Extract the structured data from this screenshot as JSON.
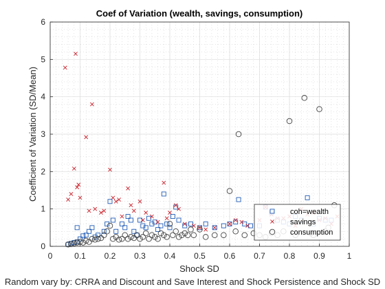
{
  "chart_data": {
    "type": "scatter",
    "title": "Coef of Variation (wealth, savings, consumption)",
    "xlabel": "Shock SD",
    "ylabel": "Coefficient of Variation (SD/Mean)",
    "footer": "Random vary by: CRRA and Discount and Save Interest and Shock Persistence and Shock SD",
    "xlim": [
      0,
      1
    ],
    "ylim": [
      0,
      6
    ],
    "xticks": [
      "0",
      "0.1",
      "0.2",
      "0.3",
      "0.4",
      "0.5",
      "0.6",
      "0.7",
      "0.8",
      "0.9",
      "1"
    ],
    "yticks": [
      "0",
      "1",
      "2",
      "3",
      "4",
      "5",
      "6"
    ],
    "grid": true,
    "minor_grid": true,
    "legend_position": "bottom-right",
    "series": [
      {
        "name": "coh=wealth",
        "marker": "square",
        "color": "#1f5bb5",
        "points": [
          [
            0.06,
            0.05
          ],
          [
            0.07,
            0.08
          ],
          [
            0.08,
            0.1
          ],
          [
            0.09,
            0.12
          ],
          [
            0.1,
            0.2
          ],
          [
            0.11,
            0.28
          ],
          [
            0.12,
            0.3
          ],
          [
            0.13,
            0.4
          ],
          [
            0.14,
            0.5
          ],
          [
            0.16,
            0.3
          ],
          [
            0.18,
            0.4
          ],
          [
            0.19,
            0.6
          ],
          [
            0.2,
            1.2
          ],
          [
            0.21,
            0.7
          ],
          [
            0.22,
            0.4
          ],
          [
            0.24,
            0.6
          ],
          [
            0.25,
            0.5
          ],
          [
            0.26,
            0.8
          ],
          [
            0.27,
            0.7
          ],
          [
            0.28,
            0.4
          ],
          [
            0.3,
            0.7
          ],
          [
            0.31,
            0.55
          ],
          [
            0.32,
            0.5
          ],
          [
            0.33,
            0.75
          ],
          [
            0.34,
            0.6
          ],
          [
            0.35,
            0.65
          ],
          [
            0.36,
            0.45
          ],
          [
            0.37,
            0.55
          ],
          [
            0.38,
            1.4
          ],
          [
            0.39,
            0.6
          ],
          [
            0.4,
            0.5
          ],
          [
            0.41,
            0.8
          ],
          [
            0.42,
            1.05
          ],
          [
            0.43,
            0.7
          ],
          [
            0.45,
            0.55
          ],
          [
            0.47,
            0.6
          ],
          [
            0.5,
            0.5
          ],
          [
            0.52,
            0.6
          ],
          [
            0.55,
            0.5
          ],
          [
            0.58,
            0.55
          ],
          [
            0.6,
            0.6
          ],
          [
            0.62,
            0.65
          ],
          [
            0.63,
            1.25
          ],
          [
            0.65,
            0.6
          ],
          [
            0.67,
            0.55
          ],
          [
            0.7,
            0.55
          ],
          [
            0.72,
            1.05
          ],
          [
            0.74,
            0.9
          ],
          [
            0.76,
            0.7
          ],
          [
            0.78,
            0.65
          ],
          [
            0.8,
            0.6
          ],
          [
            0.82,
            0.8
          ],
          [
            0.84,
            0.7
          ],
          [
            0.86,
            1.3
          ],
          [
            0.88,
            0.6
          ],
          [
            0.9,
            0.75
          ],
          [
            0.92,
            0.7
          ],
          [
            0.94,
            0.7
          ],
          [
            0.09,
            0.5
          ],
          [
            0.15,
            0.25
          ],
          [
            0.29,
            0.3
          ]
        ]
      },
      {
        "name": "savings",
        "marker": "x",
        "color": "#c8202a",
        "points": [
          [
            0.05,
            4.78
          ],
          [
            0.06,
            1.25
          ],
          [
            0.07,
            1.4
          ],
          [
            0.08,
            2.08
          ],
          [
            0.085,
            5.15
          ],
          [
            0.09,
            1.58
          ],
          [
            0.095,
            1.65
          ],
          [
            0.1,
            1.3
          ],
          [
            0.12,
            2.92
          ],
          [
            0.13,
            0.95
          ],
          [
            0.14,
            3.8
          ],
          [
            0.15,
            1.0
          ],
          [
            0.17,
            0.9
          ],
          [
            0.18,
            0.95
          ],
          [
            0.2,
            2.05
          ],
          [
            0.21,
            1.3
          ],
          [
            0.22,
            1.2
          ],
          [
            0.23,
            1.25
          ],
          [
            0.24,
            0.8
          ],
          [
            0.26,
            1.55
          ],
          [
            0.27,
            1.1
          ],
          [
            0.28,
            0.95
          ],
          [
            0.3,
            1.2
          ],
          [
            0.31,
            0.7
          ],
          [
            0.32,
            0.9
          ],
          [
            0.34,
            0.8
          ],
          [
            0.36,
            0.65
          ],
          [
            0.38,
            1.7
          ],
          [
            0.39,
            0.75
          ],
          [
            0.4,
            0.9
          ],
          [
            0.42,
            1.1
          ],
          [
            0.43,
            1.0
          ],
          [
            0.45,
            0.6
          ],
          [
            0.48,
            0.55
          ],
          [
            0.5,
            0.5
          ],
          [
            0.52,
            0.45
          ],
          [
            0.55,
            0.5
          ],
          [
            0.6,
            0.6
          ],
          [
            0.62,
            0.7
          ],
          [
            0.64,
            0.65
          ],
          [
            0.66,
            0.55
          ],
          [
            0.7,
            0.7
          ],
          [
            0.72,
            1.05
          ],
          [
            0.74,
            0.85
          ],
          [
            0.76,
            0.75
          ],
          [
            0.78,
            0.75
          ],
          [
            0.8,
            0.8
          ],
          [
            0.82,
            0.55
          ],
          [
            0.84,
            1.0
          ],
          [
            0.86,
            0.85
          ],
          [
            0.88,
            0.9
          ],
          [
            0.9,
            0.7
          ],
          [
            0.92,
            0.75
          ],
          [
            0.94,
            0.6
          ],
          [
            0.96,
            0.8
          ]
        ]
      },
      {
        "name": "consumption",
        "marker": "circle",
        "color": "#404040",
        "points": [
          [
            0.06,
            0.05
          ],
          [
            0.07,
            0.06
          ],
          [
            0.08,
            0.08
          ],
          [
            0.09,
            0.1
          ],
          [
            0.1,
            0.12
          ],
          [
            0.11,
            0.1
          ],
          [
            0.12,
            0.15
          ],
          [
            0.13,
            0.12
          ],
          [
            0.14,
            0.2
          ],
          [
            0.15,
            0.18
          ],
          [
            0.16,
            0.2
          ],
          [
            0.17,
            0.22
          ],
          [
            0.18,
            0.3
          ],
          [
            0.19,
            0.4
          ],
          [
            0.2,
            0.55
          ],
          [
            0.21,
            0.2
          ],
          [
            0.22,
            0.25
          ],
          [
            0.23,
            0.18
          ],
          [
            0.24,
            0.2
          ],
          [
            0.25,
            0.3
          ],
          [
            0.26,
            0.2
          ],
          [
            0.27,
            0.25
          ],
          [
            0.28,
            0.22
          ],
          [
            0.29,
            0.3
          ],
          [
            0.3,
            0.2
          ],
          [
            0.31,
            0.25
          ],
          [
            0.32,
            0.35
          ],
          [
            0.33,
            0.2
          ],
          [
            0.34,
            0.3
          ],
          [
            0.35,
            0.25
          ],
          [
            0.36,
            0.2
          ],
          [
            0.37,
            0.35
          ],
          [
            0.38,
            0.3
          ],
          [
            0.39,
            0.25
          ],
          [
            0.4,
            0.6
          ],
          [
            0.41,
            0.3
          ],
          [
            0.42,
            0.4
          ],
          [
            0.43,
            0.25
          ],
          [
            0.44,
            0.3
          ],
          [
            0.45,
            0.35
          ],
          [
            0.46,
            0.3
          ],
          [
            0.47,
            0.45
          ],
          [
            0.48,
            0.3
          ],
          [
            0.5,
            0.45
          ],
          [
            0.52,
            0.25
          ],
          [
            0.55,
            0.3
          ],
          [
            0.58,
            0.3
          ],
          [
            0.6,
            1.48
          ],
          [
            0.62,
            0.4
          ],
          [
            0.63,
            3.0
          ],
          [
            0.65,
            0.3
          ],
          [
            0.68,
            0.35
          ],
          [
            0.7,
            0.3
          ],
          [
            0.72,
            0.25
          ],
          [
            0.74,
            0.35
          ],
          [
            0.76,
            0.3
          ],
          [
            0.78,
            0.4
          ],
          [
            0.8,
            3.35
          ],
          [
            0.82,
            0.3
          ],
          [
            0.85,
            3.97
          ],
          [
            0.87,
            0.35
          ],
          [
            0.9,
            3.67
          ],
          [
            0.92,
            0.4
          ],
          [
            0.95,
            1.1
          ],
          [
            0.93,
            0.5
          ],
          [
            0.88,
            0.3
          ]
        ]
      }
    ]
  }
}
